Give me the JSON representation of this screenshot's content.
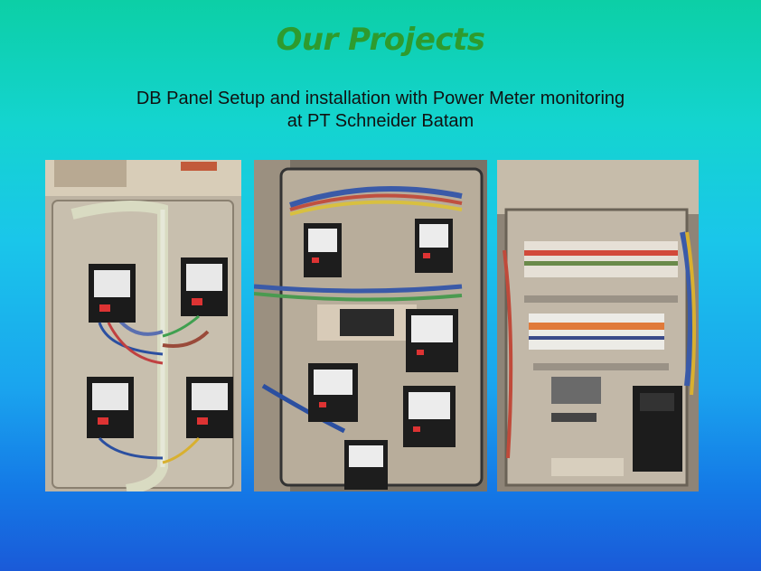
{
  "slide": {
    "title": "Our Projects",
    "subtitle_line1": "DB Panel Setup and installation with Power Meter monitoring",
    "subtitle_line2": "at PT Schneider Batam"
  },
  "colors": {
    "title": "#2e9b2e",
    "background_top": "#0ccfa6",
    "background_bottom": "#1a5ad8"
  },
  "photos": [
    {
      "name": "photo-panel-four-meters"
    },
    {
      "name": "photo-panel-six-meters"
    },
    {
      "name": "photo-panel-terminal-blocks"
    }
  ]
}
